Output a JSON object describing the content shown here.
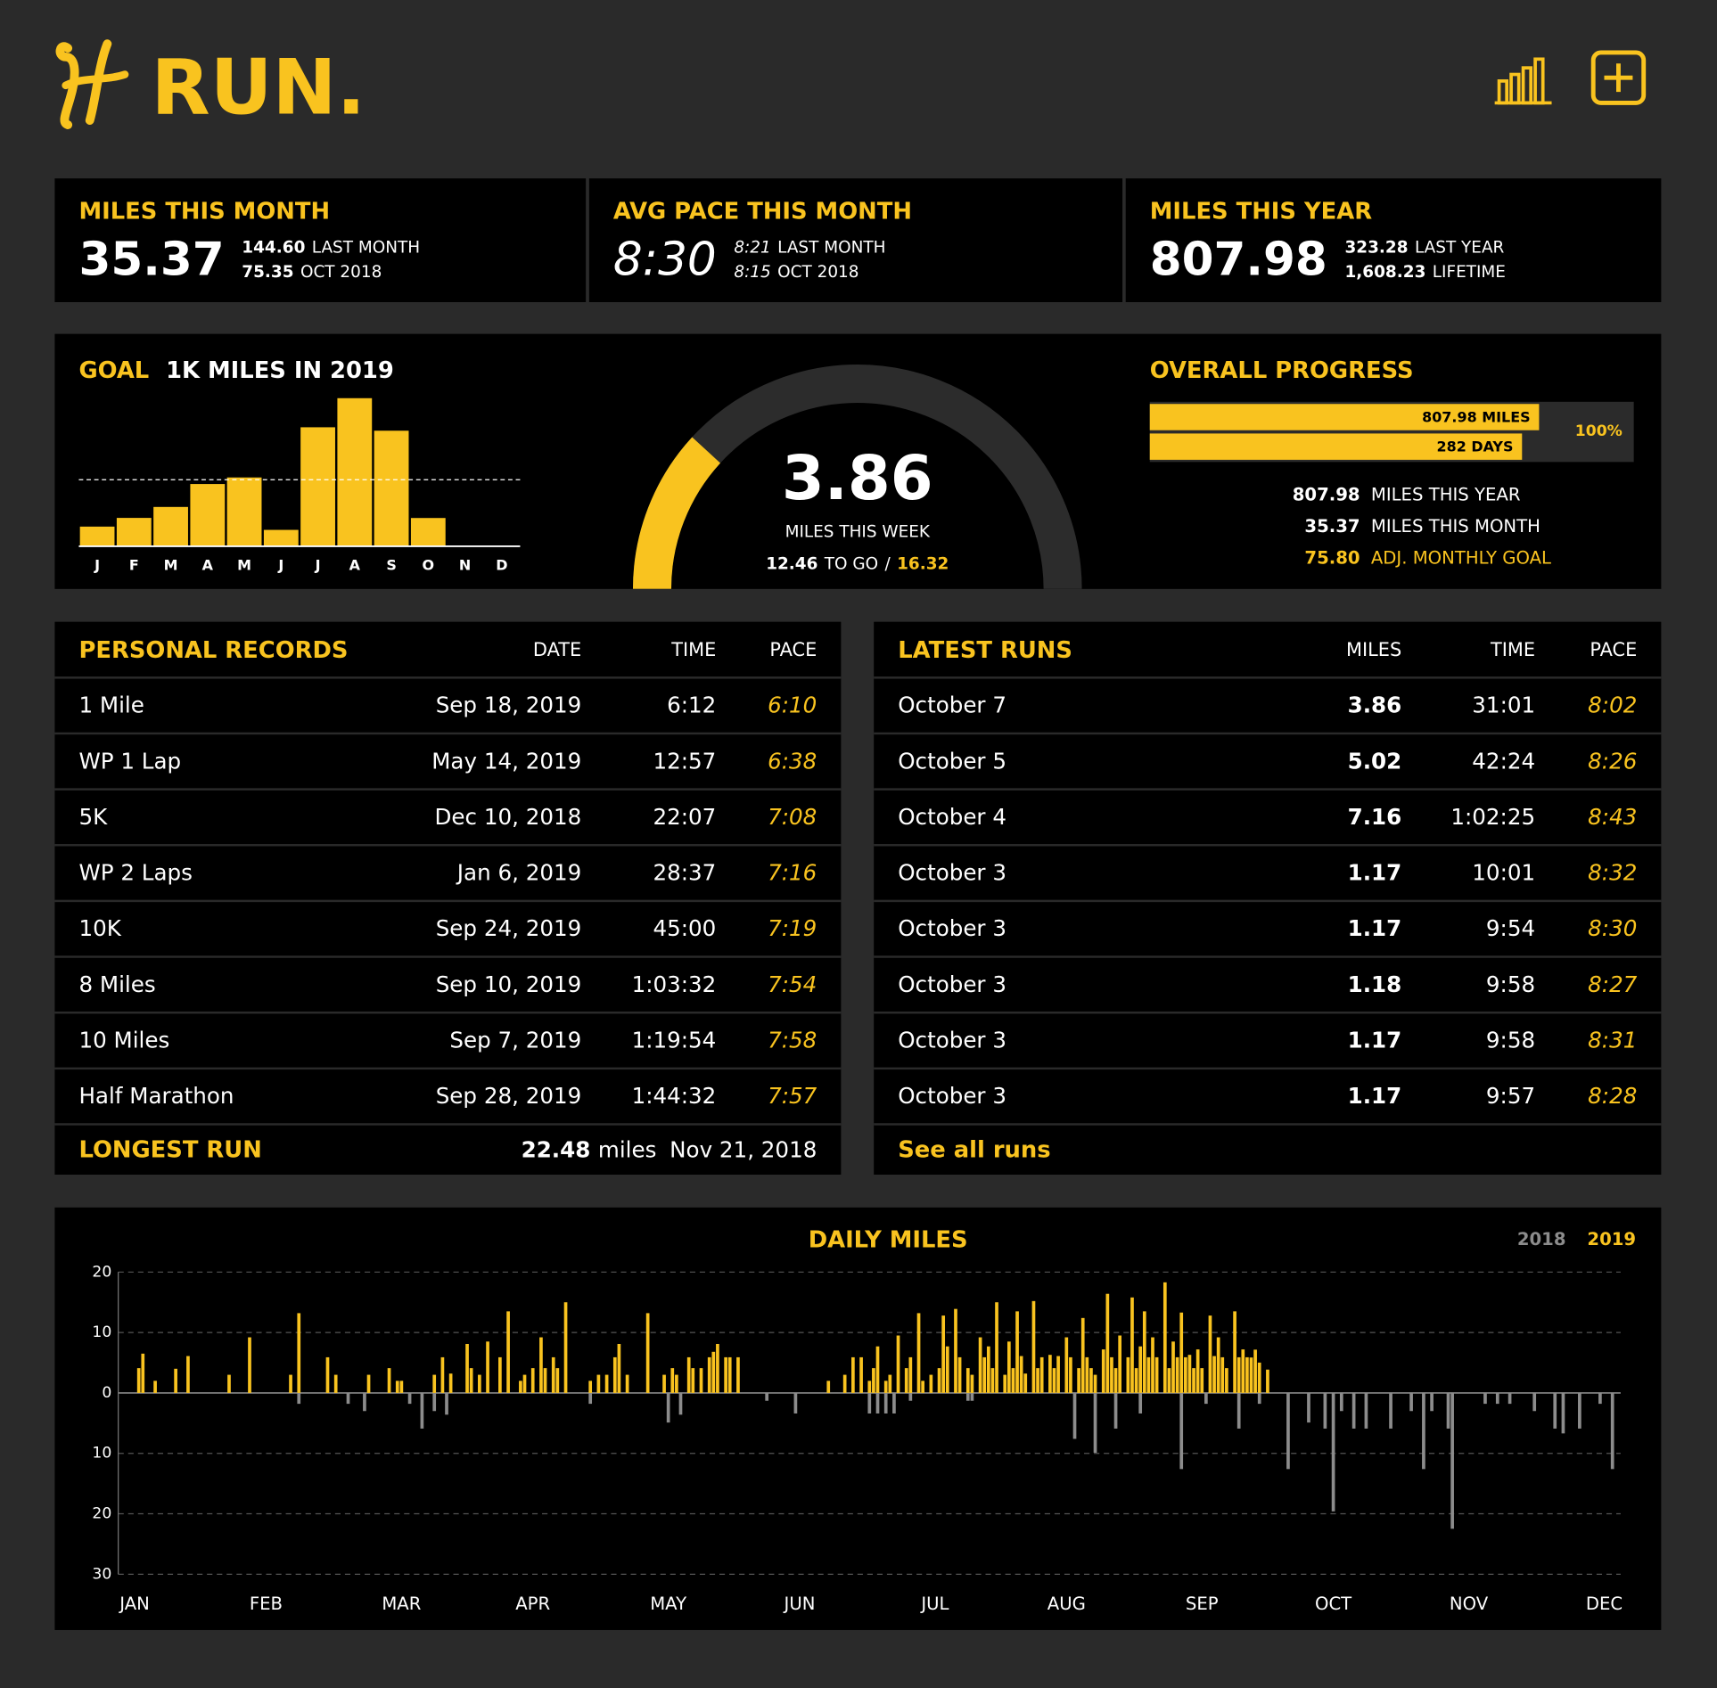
{
  "header": {
    "title": "RUN."
  },
  "stats": [
    {
      "title": "MILES THIS MONTH",
      "value": "35.37",
      "details": [
        {
          "value": "144.60",
          "label": "LAST MONTH"
        },
        {
          "value": "75.35",
          "label": "OCT 2018"
        }
      ]
    },
    {
      "title": "AVG PACE THIS MONTH",
      "value": "8:30",
      "details": [
        {
          "value": "8:21",
          "label": "LAST MONTH"
        },
        {
          "value": "8:15",
          "label": "OCT 2018"
        }
      ]
    },
    {
      "title": "MILES THIS YEAR",
      "value": "807.98",
      "details": [
        {
          "value": "323.28",
          "label": "LAST YEAR"
        },
        {
          "value": "1,608.23",
          "label": "LIFETIME"
        }
      ]
    }
  ],
  "goal": {
    "label": "GOAL",
    "text": "1K MILES IN 2019"
  },
  "week": {
    "value": 3.86,
    "label": "MILES THIS WEEK",
    "to_go": 12.46,
    "to_go_label": "TO GO",
    "separator": "/",
    "goal": 16.32
  },
  "progress": {
    "title": "OVERALL PROGRESS",
    "summary": [
      {
        "value": "807.98",
        "label": "MILES THIS YEAR"
      },
      {
        "value": "35.37",
        "label": "MILES THIS MONTH"
      },
      {
        "value": "75.80",
        "label": "ADJ. MONTHLY GOAL"
      }
    ]
  },
  "records": {
    "title": "PERSONAL RECORDS",
    "columns": [
      "DATE",
      "TIME",
      "PACE"
    ],
    "rows": [
      [
        "1 Mile",
        "Sep 18, 2019",
        "6:12",
        "6:10"
      ],
      [
        "WP 1 Lap",
        "May 14, 2019",
        "12:57",
        "6:38"
      ],
      [
        "5K",
        "Dec 10, 2018",
        "22:07",
        "7:08"
      ],
      [
        "WP 2 Laps",
        "Jan 6, 2019",
        "28:37",
        "7:16"
      ],
      [
        "10K",
        "Sep 24, 2019",
        "45:00",
        "7:19"
      ],
      [
        "8 Miles",
        "Sep 10, 2019",
        "1:03:32",
        "7:54"
      ],
      [
        "10 Miles",
        "Sep 7, 2019",
        "1:19:54",
        "7:58"
      ],
      [
        "Half Marathon",
        "Sep 28, 2019",
        "1:44:32",
        "7:57"
      ]
    ],
    "footer": {
      "label": "LONGEST RUN",
      "value": "22.48",
      "unit": "miles",
      "date": "Nov 21, 2018"
    }
  },
  "latest": {
    "title": "LATEST RUNS",
    "columns": [
      "MILES",
      "TIME",
      "PACE"
    ],
    "rows": [
      [
        "October 7",
        "3.86",
        "31:01",
        "8:02"
      ],
      [
        "October 5",
        "5.02",
        "42:24",
        "8:26"
      ],
      [
        "October 4",
        "7.16",
        "1:02:25",
        "8:43"
      ],
      [
        "October 3",
        "1.17",
        "10:01",
        "8:32"
      ],
      [
        "October 3",
        "1.17",
        "9:54",
        "8:30"
      ],
      [
        "October 3",
        "1.18",
        "9:58",
        "8:27"
      ],
      [
        "October 3",
        "1.17",
        "9:58",
        "8:31"
      ],
      [
        "October 3",
        "1.17",
        "9:57",
        "8:28"
      ]
    ],
    "link": "See all runs"
  },
  "chart_data": [
    {
      "type": "bar",
      "categories": [
        "J",
        "F",
        "M",
        "A",
        "M",
        "J",
        "J",
        "A",
        "S",
        "O",
        "N",
        "D"
      ],
      "values": [
        24.6,
        35.5,
        49.2,
        77.9,
        86.1,
        20.5,
        148.9,
        185.3,
        144.6,
        35.37,
        0,
        0
      ],
      "color": "#f9c31f",
      "ylim": [
        0,
        200
      ],
      "reference_line": 83.33
    },
    {
      "type": "progress",
      "color": "#f9c31f",
      "bars": [
        {
          "value": 807.98,
          "label": "807.98 MILES",
          "xlim": [
            0,
            1000
          ]
        },
        {
          "value": 282,
          "label": "282 DAYS",
          "xlim": [
            0,
            365
          ]
        }
      ],
      "end_label": "100%"
    },
    {
      "type": "bar",
      "title": "DAILY MILES",
      "grid": true,
      "xlim": [
        0,
        366
      ],
      "xticks": [
        {
          "value": 4,
          "label": "JAN"
        },
        {
          "value": 36,
          "label": "FEB"
        },
        {
          "value": 69,
          "label": "MAR"
        },
        {
          "value": 101,
          "label": "APR"
        },
        {
          "value": 134,
          "label": "MAY"
        },
        {
          "value": 166,
          "label": "JUN"
        },
        {
          "value": 199,
          "label": "JUL"
        },
        {
          "value": 231,
          "label": "AUG"
        },
        {
          "value": 264,
          "label": "SEP"
        },
        {
          "value": 296,
          "label": "OCT"
        },
        {
          "value": 329,
          "label": "NOV"
        },
        {
          "value": 362,
          "label": "DEC"
        }
      ],
      "ylim": [
        -30,
        20
      ],
      "yticks": [
        20,
        10,
        0,
        {
          "value": -10,
          "label": "10"
        },
        {
          "value": -20,
          "label": "20"
        },
        {
          "value": -30,
          "label": "30"
        }
      ],
      "series": [
        {
          "name": "2018",
          "color": "#8c8c8c",
          "x": [
            44,
            56,
            60,
            71,
            74,
            77,
            80,
            115,
            134,
            137,
            158,
            165,
            183,
            185,
            187,
            189,
            193,
            207,
            208,
            233,
            238,
            243,
            249,
            259,
            265,
            273,
            278,
            285,
            290,
            294,
            296,
            298,
            301,
            304,
            310,
            315,
            318,
            320,
            324,
            325,
            333,
            336,
            339,
            345,
            350,
            352,
            356,
            361,
            364
          ],
          "values": [
            -1.8,
            -1.8,
            -3,
            -1.8,
            -5.9,
            -3,
            -3.6,
            -1.8,
            -4.9,
            -3.6,
            -1.3,
            -3.4,
            -3.4,
            -3.4,
            -3.4,
            -3.4,
            -1.3,
            -1.3,
            -1.3,
            -7.6,
            -9.9,
            -5.9,
            -3.4,
            -12.6,
            -1.8,
            -5.9,
            -1.8,
            -12.6,
            -4.9,
            -5.9,
            -19.6,
            -3,
            -5.9,
            -5.9,
            -5.9,
            -3,
            -12.6,
            -3,
            -5.9,
            -22.48,
            -1.8,
            -1.8,
            -1.8,
            -3,
            -5.9,
            -6.7,
            -5.9,
            -1.8,
            -12.6
          ]
        },
        {
          "name": "2019",
          "color": "#f9c31f",
          "x": [
            5,
            6,
            9,
            14,
            17,
            27,
            32,
            42,
            44,
            51,
            53,
            61,
            66,
            68,
            69,
            77,
            79,
            81,
            85,
            86,
            88,
            90,
            93,
            95,
            98,
            99,
            101,
            103,
            104,
            106,
            107,
            109,
            115,
            117,
            119,
            121,
            122,
            124,
            129,
            133,
            135,
            136,
            139,
            140,
            142,
            144,
            145,
            146,
            148,
            149,
            151,
            173,
            177,
            179,
            181,
            183,
            184,
            185,
            187,
            188,
            190,
            192,
            193,
            195,
            196,
            198,
            200,
            201,
            202,
            204,
            205,
            207,
            208,
            210,
            211,
            212,
            213,
            214,
            216,
            217,
            218,
            219,
            220,
            221,
            223,
            224,
            225,
            227,
            228,
            229,
            231,
            232,
            234,
            235,
            236,
            237,
            238,
            240,
            241,
            242,
            243,
            244,
            246,
            247,
            248,
            249,
            250,
            251,
            252,
            253,
            255,
            256,
            257,
            258,
            259,
            260,
            261,
            262,
            263,
            264,
            266,
            267,
            268,
            269,
            270,
            272,
            273,
            274,
            275,
            276,
            277,
            278,
            280
          ],
          "values": [
            4.1,
            6.5,
            2,
            4,
            6.1,
            3,
            9.2,
            3,
            13.2,
            5.9,
            3,
            3,
            4.1,
            2,
            2,
            3,
            5.9,
            3.2,
            8.1,
            4.1,
            3,
            8.5,
            5.9,
            13.5,
            2,
            3,
            4.1,
            9.2,
            4.1,
            5.9,
            4.1,
            15,
            2,
            3,
            3,
            5.9,
            8.1,
            3,
            13.2,
            3,
            4.1,
            3,
            5.9,
            4.1,
            4.1,
            5.9,
            6.8,
            8.1,
            5.9,
            5.9,
            5.9,
            2,
            3,
            5.9,
            5.9,
            2,
            4.1,
            7.7,
            2,
            3,
            9.5,
            4.1,
            5.9,
            13.2,
            2,
            3,
            4.1,
            12.8,
            7.7,
            13.9,
            5.9,
            4.1,
            3,
            9.2,
            5.9,
            7.7,
            4.1,
            15,
            3,
            8.5,
            4.1,
            13.5,
            6.1,
            3.2,
            15.2,
            4.1,
            5.9,
            6.3,
            4.1,
            6.1,
            9.2,
            5.9,
            4.1,
            12.4,
            5.9,
            4.1,
            3,
            7.2,
            16.4,
            5.9,
            4.1,
            9.5,
            5.9,
            15.8,
            4.1,
            7.7,
            13.5,
            5.9,
            9.2,
            5.9,
            18.3,
            4.1,
            8.5,
            5.9,
            13.3,
            5.9,
            6.3,
            4.1,
            7.2,
            4.1,
            12.8,
            6.1,
            9.2,
            5.9,
            4.1,
            13.5,
            5.9,
            7.2,
            5.9,
            5.86,
            7.16,
            5.02,
            3.86
          ]
        }
      ]
    }
  ]
}
